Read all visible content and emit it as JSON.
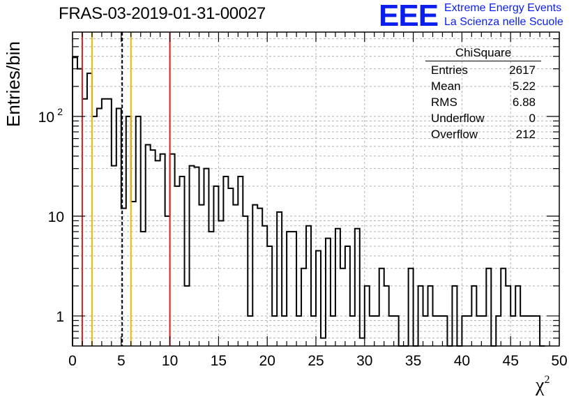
{
  "chart_data": {
    "type": "histogram",
    "title": "FRAS-03-2019-01-31-00027",
    "xlabel": "χ",
    "xlabel_sup": "2",
    "ylabel": "Entries/bin",
    "xlim": [
      0,
      50
    ],
    "ylim": [
      0.5,
      700
    ],
    "yscale": "log",
    "grid": true,
    "bin_width": 0.5,
    "x_ticks": [
      0,
      5,
      10,
      15,
      20,
      25,
      30,
      35,
      40,
      45,
      50
    ],
    "y_tick_labels": [
      {
        "value": 1,
        "label": "1"
      },
      {
        "value": 10,
        "label": "10"
      },
      {
        "value": 100,
        "label": "10",
        "sup": "2"
      }
    ],
    "counts": [
      390,
      300,
      150,
      270,
      100,
      120,
      150,
      150,
      32,
      120,
      12,
      100,
      14,
      100,
      7,
      52,
      46,
      36,
      42,
      10,
      42,
      20,
      25,
      2,
      32,
      31,
      13,
      30,
      7,
      20,
      9,
      25,
      19,
      13,
      25,
      10,
      1,
      13,
      12,
      8,
      5,
      1,
      11,
      1,
      7,
      7,
      1,
      3,
      8,
      1,
      4.5,
      0.6,
      6,
      1,
      7.5,
      3,
      5,
      1,
      7.5,
      0.6,
      2,
      1,
      1,
      3,
      2,
      1,
      1,
      0,
      0,
      3,
      0,
      2,
      1,
      2,
      1,
      1,
      1,
      0,
      2,
      0,
      1,
      1,
      2,
      1,
      1,
      3,
      0,
      1,
      3,
      2,
      1,
      2,
      1,
      1,
      1,
      1,
      0
    ],
    "vertical_lines": [
      {
        "x": 1,
        "color": "#dd2222",
        "style": "solid"
      },
      {
        "x": 2,
        "color": "#f0b800",
        "style": "solid"
      },
      {
        "x": 5.1,
        "color": "#000000",
        "style": "dashed"
      },
      {
        "x": 6,
        "color": "#f0b800",
        "style": "solid"
      },
      {
        "x": 10,
        "color": "#dd2222",
        "style": "solid"
      }
    ],
    "stats_box": {
      "title": "ChiSquare",
      "rows": [
        {
          "label": "Entries",
          "value": "2617"
        },
        {
          "label": "Mean",
          "value": "5.22"
        },
        {
          "label": "RMS",
          "value": "6.88"
        },
        {
          "label": "Underflow",
          "value": "0"
        },
        {
          "label": "Overflow",
          "value": "212"
        }
      ]
    },
    "logo": {
      "mark": "EEE",
      "line1": "Extreme Energy Events",
      "line2": "La Scienza nelle Scuole",
      "color": "#0a1ef0"
    }
  }
}
